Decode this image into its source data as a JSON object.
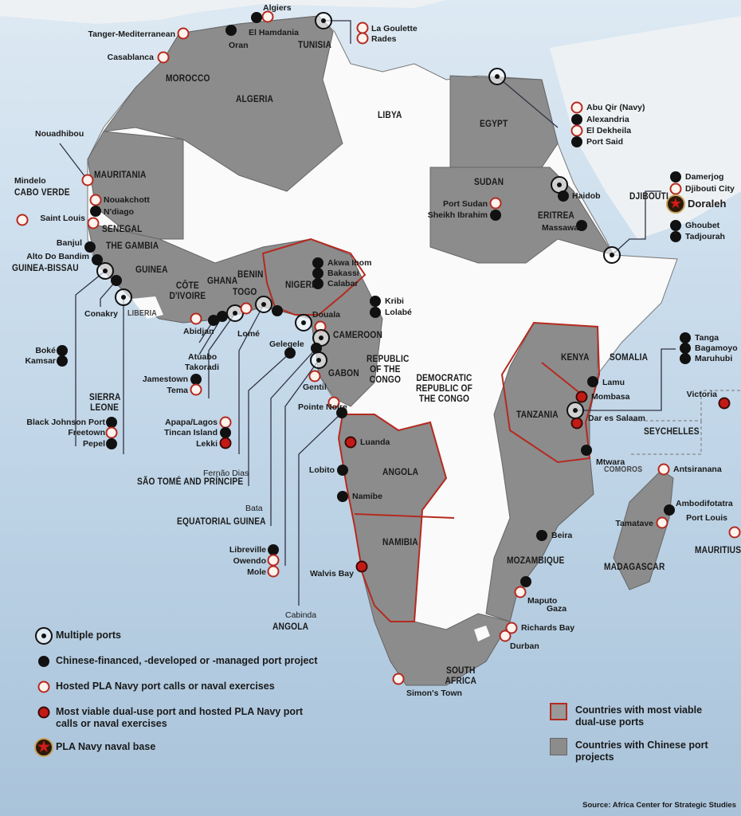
{
  "colors": {
    "ocean": "#c5d9ea",
    "china_country": "#8c8c8c",
    "other_country": "#fafafa",
    "dual_use_border": "#b52a20",
    "pla_marker": "#b52a20",
    "dual_marker": "#c41a16"
  },
  "countries": [
    "Morocco",
    "Algeria",
    "Tunisia",
    "Libya",
    "Egypt",
    "Sudan",
    "Eritrea",
    "Djibouti",
    "Somalia",
    "Kenya",
    "Tanzania",
    "Mozambique",
    "Madagascar",
    "Seychelles",
    "Comoros",
    "Mauritius",
    "South Africa",
    "Namibia",
    "Angola",
    "Democratic Republic of the Congo",
    "Republic of the Congo",
    "Gabon",
    "Cameroon",
    "Nigeria",
    "Benin",
    "Togo",
    "Ghana",
    "Côte d'Ivoire",
    "Guinea",
    "The Gambia",
    "Senegal",
    "Mauritania",
    "Cabo Verde",
    "Guinea-Bissau",
    "Sierra Leone",
    "Liberia",
    "São Tomé and Príncipe",
    "Equatorial Guinea",
    "Angola"
  ],
  "ports": [
    {
      "name": "Algiers",
      "type": "pla"
    },
    {
      "name": "El Hamdania",
      "type": "china"
    },
    {
      "name": "Oran",
      "type": "china"
    },
    {
      "name": "",
      "type": "multi"
    },
    {
      "name": "La Goulette",
      "type": "pla"
    },
    {
      "name": "Rades",
      "type": "pla"
    },
    {
      "name": "Tanger-Mediterranean",
      "type": "pla"
    },
    {
      "name": "Casablanca",
      "type": "pla"
    },
    {
      "name": "Nouadhibou",
      "type": "pla"
    },
    {
      "name": "Mindelo",
      "type": "pla"
    },
    {
      "name": "Nouakchott",
      "type": "pla"
    },
    {
      "name": "N'diago",
      "type": "china"
    },
    {
      "name": "Saint Louis",
      "type": "pla"
    },
    {
      "name": "Banjul",
      "type": "china"
    },
    {
      "name": "Alto Do Bandim",
      "type": "china"
    },
    {
      "name": "",
      "type": "multi"
    },
    {
      "name": "Conakry",
      "type": "china"
    },
    {
      "name": "",
      "type": "multi"
    },
    {
      "name": "Boké",
      "type": "china"
    },
    {
      "name": "Kamsar",
      "type": "china"
    },
    {
      "name": "Black Johnson Port",
      "type": "china"
    },
    {
      "name": "Freetown",
      "type": "pla"
    },
    {
      "name": "Pepel",
      "type": "china"
    },
    {
      "name": "Abidjan",
      "type": "pla"
    },
    {
      "name": "Atuabo",
      "type": "china"
    },
    {
      "name": "Takoradi",
      "type": "china"
    },
    {
      "name": "",
      "type": "multi"
    },
    {
      "name": "Lomé",
      "type": "pla"
    },
    {
      "name": "",
      "type": "multi"
    },
    {
      "name": "",
      "type": "china"
    },
    {
      "name": "Jamestown",
      "type": "china"
    },
    {
      "name": "Tema",
      "type": "pla"
    },
    {
      "name": "Apapa/Lagos",
      "type": "pla"
    },
    {
      "name": "Tincan Island",
      "type": "china"
    },
    {
      "name": "Lekki",
      "type": "dual"
    },
    {
      "name": "Gelegele",
      "type": "china"
    },
    {
      "name": "Akwa Ibom",
      "type": "china"
    },
    {
      "name": "Bakassi",
      "type": "china"
    },
    {
      "name": "Calabar",
      "type": "china"
    },
    {
      "name": "",
      "type": "multi"
    },
    {
      "name": "Douala",
      "type": "pla"
    },
    {
      "name": "",
      "type": "multi"
    },
    {
      "name": "Kribi",
      "type": "china"
    },
    {
      "name": "Lolabé",
      "type": "china"
    },
    {
      "name": "",
      "type": "china"
    },
    {
      "name": "",
      "type": "multi"
    },
    {
      "name": "Gentil",
      "type": "pla"
    },
    {
      "name": "Pointe Noire",
      "type": "pla"
    },
    {
      "name": "",
      "type": "china"
    },
    {
      "name": "Luanda",
      "type": "dual"
    },
    {
      "name": "Lobito",
      "type": "china"
    },
    {
      "name": "Namibe",
      "type": "china"
    },
    {
      "name": "Walvis Bay",
      "type": "dual"
    },
    {
      "name": "Libreville",
      "type": "china"
    },
    {
      "name": "Owendo",
      "type": "pla"
    },
    {
      "name": "Mole",
      "type": "pla"
    },
    {
      "name": "Simon's Town",
      "type": "pla"
    },
    {
      "name": "Durban",
      "type": "pla"
    },
    {
      "name": "Richards Bay",
      "type": "pla"
    },
    {
      "name": "Maputo",
      "type": "pla"
    },
    {
      "name": "Gaza",
      "type": "china"
    },
    {
      "name": "Beira",
      "type": "china"
    },
    {
      "name": "Mtwara",
      "type": "china"
    },
    {
      "name": "Dar es Salaam",
      "type": "dual"
    },
    {
      "name": "",
      "type": "multi"
    },
    {
      "name": "Mombasa",
      "type": "dual"
    },
    {
      "name": "Lamu",
      "type": "china"
    },
    {
      "name": "Tanga",
      "type": "china"
    },
    {
      "name": "Bagamoyo",
      "type": "china"
    },
    {
      "name": "Maruhubi",
      "type": "china"
    },
    {
      "name": "Victoria",
      "type": "dual"
    },
    {
      "name": "Antsiranana",
      "type": "pla"
    },
    {
      "name": "Ambodifotatra",
      "type": "china"
    },
    {
      "name": "Tamatave",
      "type": "pla"
    },
    {
      "name": "Port Louis",
      "type": "pla"
    },
    {
      "name": "",
      "type": "multi"
    },
    {
      "name": "Damerjog",
      "type": "china"
    },
    {
      "name": "Djibouti City",
      "type": "pla"
    },
    {
      "name": "Doraleh",
      "type": "base"
    },
    {
      "name": "Ghoubet",
      "type": "china"
    },
    {
      "name": "Tadjourah",
      "type": "china"
    },
    {
      "name": "",
      "type": "multi"
    },
    {
      "name": "Haidob",
      "type": "china"
    },
    {
      "name": "Massawa",
      "type": "china"
    },
    {
      "name": "Port Sudan",
      "type": "pla"
    },
    {
      "name": "Sheikh Ibrahim",
      "type": "china"
    },
    {
      "name": "",
      "type": "multi"
    },
    {
      "name": "Abu Qir (Navy)",
      "type": "pla"
    },
    {
      "name": "Alexandria",
      "type": "china"
    },
    {
      "name": "El Dekheila",
      "type": "pla"
    },
    {
      "name": "Port Said",
      "type": "china"
    }
  ],
  "extra_labels": [
    "Fernão Dias",
    "Bata",
    "Cabinda"
  ],
  "legend": {
    "multi": "Multiple ports",
    "china": "Chinese-financed, -developed or -managed port project",
    "pla": "Hosted PLA Navy port calls or naval exercises",
    "dual": "Most viable dual-use port and hosted PLA Navy port calls or naval exercises",
    "base": "PLA Navy naval base",
    "dual_countries": "Countries with most viable dual-use ports",
    "china_countries": "Countries with Chinese port projects"
  },
  "source": "Source: Africa Center for Strategic Studies"
}
